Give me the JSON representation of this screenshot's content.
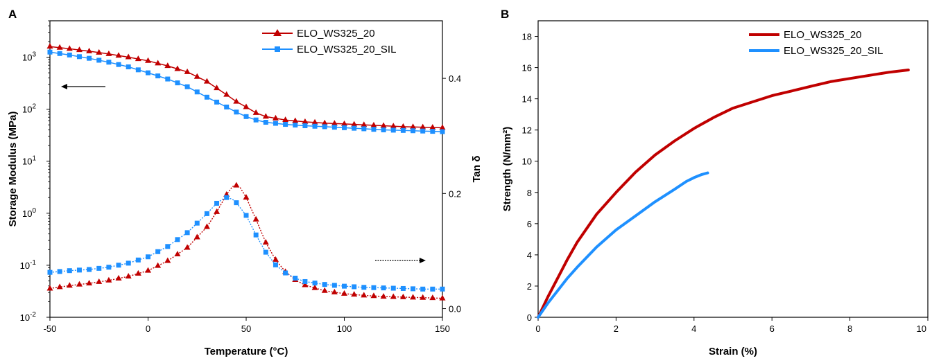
{
  "colors": {
    "red": "#c00000",
    "blue": "#1e90ff"
  },
  "chart_data": [
    {
      "panel": "A",
      "type": "line",
      "xlabel": "Temperature (°C)",
      "ylabel": "Storage Modulus (MPa)",
      "y2label": "Tan δ",
      "xlim": [
        -50,
        150
      ],
      "ylim": [
        0.01,
        5000
      ],
      "yscale": "log",
      "y2lim": [
        -0.015,
        0.5
      ],
      "xticks": [
        "-50",
        "0",
        "50",
        "100",
        "150"
      ],
      "xtick_values": [
        -50,
        0,
        50,
        100,
        150
      ],
      "yticks": [
        {
          "base": "10",
          "exp": "-2"
        },
        {
          "base": "10",
          "exp": "-1"
        },
        {
          "base": "10",
          "exp": "0"
        },
        {
          "base": "10",
          "exp": "1"
        },
        {
          "base": "10",
          "exp": "2"
        },
        {
          "base": "10",
          "exp": "3"
        }
      ],
      "ytick_values": [
        0.01,
        0.1,
        1,
        10,
        100,
        1000
      ],
      "y2ticks": [
        "0.0",
        "0.2",
        "0.4"
      ],
      "y2tick_values": [
        0.0,
        0.2,
        0.4
      ],
      "legend": {
        "placement": "top-right"
      },
      "series": [
        {
          "name": "ELO_WS325_20",
          "color": "#c00000",
          "marker": "triangle",
          "axis": "left",
          "x": [
            -50,
            -40,
            -30,
            -20,
            -10,
            0,
            10,
            20,
            30,
            40,
            45,
            50,
            55,
            60,
            70,
            80,
            90,
            100,
            110,
            120,
            130,
            140,
            150
          ],
          "y": [
            1600,
            1450,
            1300,
            1150,
            1000,
            850,
            680,
            520,
            340,
            190,
            140,
            110,
            85,
            72,
            62,
            57,
            54,
            52,
            50,
            48,
            46,
            45,
            44
          ]
        },
        {
          "name": "ELO_WS325_20_SIL",
          "color": "#1e90ff",
          "marker": "square",
          "axis": "left",
          "x": [
            -50,
            -40,
            -30,
            -20,
            -10,
            0,
            10,
            20,
            30,
            40,
            45,
            50,
            55,
            60,
            70,
            80,
            90,
            100,
            110,
            120,
            130,
            140,
            150
          ],
          "y": [
            1250,
            1100,
            950,
            800,
            650,
            500,
            380,
            270,
            170,
            110,
            88,
            72,
            62,
            56,
            51,
            48,
            46,
            44,
            42,
            40,
            39,
            38,
            37
          ]
        },
        {
          "name": "ELO_WS325_20",
          "color": "#c00000",
          "marker": "triangle",
          "axis": "right",
          "x": [
            -50,
            -40,
            -30,
            -20,
            -10,
            0,
            10,
            20,
            30,
            35,
            40,
            43,
            45,
            47,
            50,
            55,
            60,
            65,
            70,
            75,
            80,
            90,
            100,
            110,
            120,
            130,
            140,
            150
          ],
          "y": [
            0.035,
            0.04,
            0.044,
            0.049,
            0.056,
            0.066,
            0.083,
            0.106,
            0.142,
            0.168,
            0.198,
            0.212,
            0.214,
            0.21,
            0.193,
            0.155,
            0.115,
            0.085,
            0.064,
            0.05,
            0.041,
            0.031,
            0.026,
            0.023,
            0.021,
            0.02,
            0.019,
            0.018
          ]
        },
        {
          "name": "ELO_WS325_20_SIL",
          "color": "#1e90ff",
          "marker": "square",
          "axis": "right",
          "x": [
            -50,
            -40,
            -30,
            -20,
            -10,
            0,
            10,
            20,
            30,
            35,
            38,
            40,
            43,
            45,
            50,
            55,
            60,
            65,
            70,
            75,
            80,
            90,
            100,
            110,
            120,
            130,
            140,
            150
          ],
          "y": [
            0.063,
            0.066,
            0.068,
            0.072,
            0.079,
            0.09,
            0.108,
            0.132,
            0.165,
            0.183,
            0.19,
            0.193,
            0.19,
            0.184,
            0.162,
            0.128,
            0.098,
            0.076,
            0.062,
            0.053,
            0.047,
            0.042,
            0.039,
            0.037,
            0.036,
            0.035,
            0.034,
            0.034
          ]
        }
      ]
    },
    {
      "panel": "B",
      "type": "line",
      "xlabel": "Strain (%)",
      "ylabel": "Strength (N/mm²)",
      "xlim": [
        0,
        10
      ],
      "ylim": [
        0,
        19
      ],
      "xticks": [
        "0",
        "2",
        "4",
        "6",
        "8",
        "10"
      ],
      "xtick_values": [
        0,
        2,
        4,
        6,
        8,
        10
      ],
      "yticks": [
        "0",
        "2",
        "4",
        "6",
        "8",
        "10",
        "12",
        "14",
        "16",
        "18"
      ],
      "ytick_values": [
        0,
        2,
        4,
        6,
        8,
        10,
        12,
        14,
        16,
        18
      ],
      "legend": {
        "placement": "top-right"
      },
      "series": [
        {
          "name": "ELO_WS325_20",
          "color": "#c00000",
          "x": [
            0,
            0.25,
            0.5,
            0.75,
            1.0,
            1.5,
            2.0,
            2.5,
            3.0,
            3.5,
            4.0,
            4.5,
            5.0,
            5.5,
            6.0,
            6.5,
            7.0,
            7.5,
            8.0,
            8.5,
            9.0,
            9.5
          ],
          "y": [
            0,
            1.3,
            2.5,
            3.7,
            4.8,
            6.6,
            8.0,
            9.3,
            10.4,
            11.3,
            12.1,
            12.8,
            13.4,
            13.8,
            14.2,
            14.5,
            14.8,
            15.1,
            15.3,
            15.5,
            15.7,
            15.85
          ]
        },
        {
          "name": "ELO_WS325_20_SIL",
          "color": "#1e90ff",
          "x": [
            0,
            0.25,
            0.5,
            0.75,
            1.0,
            1.5,
            2.0,
            2.5,
            3.0,
            3.5,
            3.8,
            4.0,
            4.2,
            4.35
          ],
          "y": [
            0,
            0.9,
            1.7,
            2.5,
            3.2,
            4.5,
            5.6,
            6.5,
            7.4,
            8.2,
            8.7,
            8.95,
            9.15,
            9.25
          ]
        }
      ]
    }
  ]
}
